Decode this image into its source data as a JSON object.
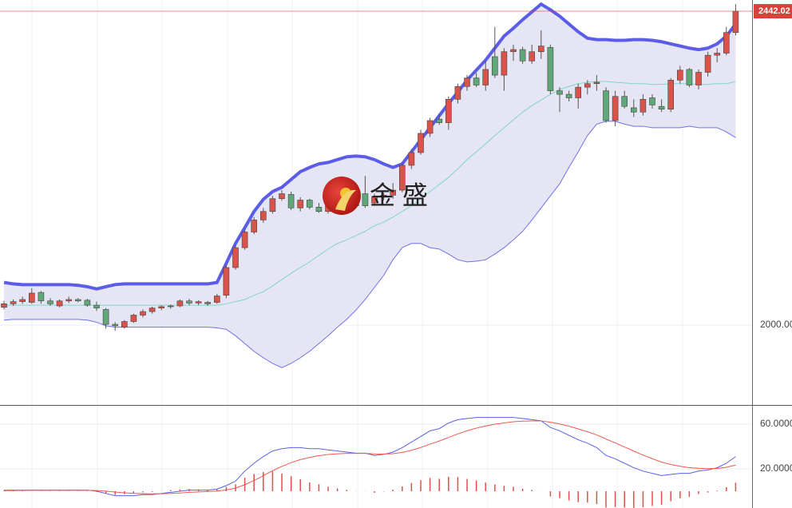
{
  "chart_data": [
    {
      "type": "candlestick",
      "up_color": "#d9534a",
      "down_color": "#5fa877",
      "ylim": [
        1887.5,
        2457.8
      ],
      "yticks": [
        {
          "value": 2000,
          "label": "2000.00"
        }
      ],
      "grid": true,
      "last_price": 2442.02,
      "last_price_color": "#d9423a",
      "watermark": "金 盛",
      "band_fill": "#e5e5f3",
      "ohlc": [
        [
          2025,
          2034,
          2022,
          2030
        ],
        [
          2030,
          2036,
          2027,
          2033
        ],
        [
          2033,
          2040,
          2030,
          2036
        ],
        [
          2032,
          2052,
          2030,
          2045
        ],
        [
          2046,
          2048,
          2030,
          2034
        ],
        [
          2034,
          2038,
          2027,
          2030
        ],
        [
          2027,
          2036,
          2025,
          2034
        ],
        [
          2034,
          2040,
          2031,
          2036
        ],
        [
          2036,
          2038,
          2032,
          2034
        ],
        [
          2035,
          2037,
          2026,
          2028
        ],
        [
          2028,
          2033,
          2020,
          2024
        ],
        [
          2022,
          2024,
          1995,
          2001
        ],
        [
          2001,
          2004,
          1992,
          1999
        ],
        [
          1997,
          2007,
          1995,
          2005
        ],
        [
          2005,
          2016,
          2003,
          2014
        ],
        [
          2014,
          2022,
          2011,
          2019
        ],
        [
          2019,
          2026,
          2016,
          2024
        ],
        [
          2024,
          2028,
          2021,
          2026
        ],
        [
          2026,
          2029,
          2023,
          2027
        ],
        [
          2027,
          2036,
          2025,
          2034
        ],
        [
          2034,
          2037,
          2028,
          2031
        ],
        [
          2031,
          2035,
          2028,
          2033
        ],
        [
          2030,
          2034,
          2027,
          2032
        ],
        [
          2032,
          2044,
          2030,
          2041
        ],
        [
          2042,
          2085,
          2038,
          2081
        ],
        [
          2081,
          2113,
          2078,
          2109
        ],
        [
          2109,
          2135,
          2106,
          2131
        ],
        [
          2131,
          2152,
          2128,
          2148
        ],
        [
          2148,
          2165,
          2144,
          2160
        ],
        [
          2160,
          2182,
          2157,
          2178
        ],
        [
          2178,
          2190,
          2175,
          2185
        ],
        [
          2184,
          2188,
          2162,
          2165
        ],
        [
          2165,
          2180,
          2160,
          2176
        ],
        [
          2176,
          2178,
          2163,
          2166
        ],
        [
          2166,
          2172,
          2158,
          2160
        ],
        [
          2160,
          2175,
          2157,
          2171
        ],
        [
          2170,
          2176,
          2163,
          2168
        ],
        [
          2168,
          2194,
          2165,
          2180
        ],
        [
          2181,
          2183,
          2165,
          2168
        ],
        [
          2185,
          2210,
          2165,
          2168
        ],
        [
          2172,
          2185,
          2168,
          2181
        ],
        [
          2181,
          2186,
          2176,
          2183
        ],
        [
          2183,
          2200,
          2178,
          2190
        ],
        [
          2190,
          2230,
          2187,
          2225
        ],
        [
          2225,
          2248,
          2220,
          2243
        ],
        [
          2243,
          2275,
          2240,
          2270
        ],
        [
          2270,
          2292,
          2265,
          2288
        ],
        [
          2290,
          2298,
          2282,
          2285
        ],
        [
          2285,
          2322,
          2275,
          2318
        ],
        [
          2318,
          2340,
          2312,
          2336
        ],
        [
          2336,
          2352,
          2330,
          2348
        ],
        [
          2348,
          2355,
          2335,
          2338
        ],
        [
          2338,
          2372,
          2330,
          2360
        ],
        [
          2378,
          2420,
          2348,
          2352
        ],
        [
          2352,
          2390,
          2330,
          2385
        ],
        [
          2385,
          2395,
          2372,
          2388
        ],
        [
          2388,
          2392,
          2368,
          2372
        ],
        [
          2372,
          2395,
          2368,
          2385
        ],
        [
          2385,
          2415,
          2375,
          2393
        ],
        [
          2391,
          2395,
          2325,
          2330
        ],
        [
          2330,
          2335,
          2300,
          2325
        ],
        [
          2325,
          2330,
          2315,
          2320
        ],
        [
          2320,
          2340,
          2305,
          2335
        ],
        [
          2335,
          2345,
          2325,
          2340
        ],
        [
          2340,
          2352,
          2330,
          2342
        ],
        [
          2330,
          2335,
          2285,
          2288
        ],
        [
          2288,
          2330,
          2280,
          2322
        ],
        [
          2322,
          2330,
          2305,
          2308
        ],
        [
          2306,
          2318,
          2293,
          2300
        ],
        [
          2300,
          2325,
          2295,
          2318
        ],
        [
          2320,
          2325,
          2305,
          2310
        ],
        [
          2308,
          2318,
          2300,
          2304
        ],
        [
          2304,
          2348,
          2300,
          2345
        ],
        [
          2345,
          2365,
          2340,
          2359
        ],
        [
          2360,
          2362,
          2335,
          2338
        ],
        [
          2338,
          2360,
          2332,
          2356
        ],
        [
          2356,
          2385,
          2350,
          2380
        ],
        [
          2380,
          2390,
          2370,
          2383
        ],
        [
          2383,
          2420,
          2380,
          2412
        ],
        [
          2412,
          2452,
          2408,
          2442
        ]
      ],
      "series": [
        {
          "color": "#5b5ce8",
          "width": 4,
          "values": [
            2060,
            2058,
            2057,
            2057,
            2057,
            2057,
            2057,
            2057,
            2056,
            2054,
            2051,
            2054,
            2057,
            2058,
            2058,
            2058,
            2058,
            2058,
            2058,
            2058,
            2058,
            2058,
            2058,
            2060,
            2087,
            2115,
            2137,
            2160,
            2177,
            2188,
            2194,
            2205,
            2216,
            2222,
            2227,
            2229,
            2233,
            2237,
            2238,
            2237,
            2233,
            2227,
            2222,
            2227,
            2244,
            2261,
            2278,
            2295,
            2312,
            2328,
            2345,
            2359,
            2373,
            2390,
            2407,
            2418,
            2430,
            2441,
            2452,
            2444,
            2435,
            2424,
            2413,
            2404,
            2402,
            2402,
            2401,
            2401,
            2402,
            2402,
            2401,
            2399,
            2396,
            2393,
            2390,
            2388,
            2390,
            2396,
            2407,
            2424
          ]
        },
        {
          "color": "#7fd8c4",
          "width": 1,
          "values": [
            2028,
            2028,
            2028,
            2028,
            2028,
            2028,
            2028,
            2028,
            2028,
            2028,
            2028,
            2028,
            2028,
            2028,
            2028,
            2028,
            2028,
            2028,
            2028,
            2028,
            2028,
            2028,
            2028,
            2028,
            2030,
            2033,
            2036,
            2042,
            2047,
            2055,
            2064,
            2073,
            2081,
            2089,
            2098,
            2107,
            2115,
            2120,
            2126,
            2132,
            2140,
            2145,
            2152,
            2160,
            2168,
            2178,
            2188,
            2198,
            2208,
            2220,
            2233,
            2244,
            2255,
            2267,
            2278,
            2289,
            2300,
            2309,
            2317,
            2325,
            2332,
            2336,
            2340,
            2342,
            2343,
            2343,
            2342,
            2341,
            2340,
            2340,
            2339,
            2339,
            2340,
            2340,
            2340,
            2339,
            2339,
            2340,
            2340,
            2343
          ]
        },
        {
          "color": "#6f72e8",
          "width": 1,
          "values": [
            2007,
            2008,
            2008,
            2008,
            2008,
            2008,
            2008,
            2008,
            2008,
            2007,
            2004,
            1999,
            1997,
            1997,
            1997,
            1997,
            1997,
            1997,
            1997,
            1997,
            1997,
            1997,
            1997,
            1996,
            1994,
            1985,
            1974,
            1963,
            1954,
            1946,
            1940,
            1946,
            1954,
            1963,
            1974,
            1985,
            1997,
            2008,
            2021,
            2036,
            2053,
            2070,
            2092,
            2109,
            2115,
            2115,
            2109,
            2107,
            2100,
            2092,
            2089,
            2090,
            2092,
            2100,
            2109,
            2120,
            2132,
            2148,
            2165,
            2182,
            2199,
            2222,
            2244,
            2267,
            2283,
            2287,
            2287,
            2283,
            2280,
            2280,
            2278,
            2278,
            2278,
            2278,
            2280,
            2278,
            2278,
            2278,
            2272,
            2264
          ]
        }
      ]
    },
    {
      "type": "line",
      "ylim": [
        -15,
        75
      ],
      "yticks": [
        {
          "value": 60,
          "label": "60.0000"
        },
        {
          "value": 20,
          "label": "20.0000"
        }
      ],
      "grid": true,
      "series": [
        {
          "kind": "line",
          "color": "#5a62e6",
          "values": [
            1,
            1,
            1,
            1,
            1,
            1,
            1,
            1,
            1,
            1,
            0,
            -2,
            -4,
            -4,
            -4,
            -3,
            -3,
            -2,
            -1,
            0,
            1,
            1,
            1,
            2,
            5,
            9,
            18,
            25,
            31,
            36,
            38,
            39,
            39,
            38,
            38,
            37,
            36,
            35,
            34,
            34,
            32,
            33,
            35,
            39,
            44,
            49,
            54,
            56,
            61,
            64,
            65,
            66,
            66,
            66,
            66,
            66,
            65,
            64,
            63,
            57,
            54,
            50,
            46,
            43,
            39,
            32,
            29,
            25,
            21,
            18,
            16,
            14,
            15,
            16,
            16,
            18,
            19,
            21,
            25,
            31
          ]
        },
        {
          "kind": "line",
          "color": "#ef5a4f",
          "values": [
            0.5,
            0.6,
            0.7,
            0.8,
            0.8,
            0.8,
            0.8,
            0.8,
            0.8,
            0.8,
            0.6,
            0.1,
            -0.7,
            -1.4,
            -1.9,
            -2.1,
            -2.3,
            -2.2,
            -2,
            -1.6,
            -1,
            -0.6,
            -0.3,
            0.2,
            1.2,
            2.8,
            5.8,
            9.6,
            13.9,
            18.3,
            22.2,
            25.6,
            28.3,
            30.2,
            31.8,
            32.9,
            33.5,
            33.8,
            33.8,
            33.8,
            33.4,
            33.3,
            33.6,
            34.7,
            36.6,
            39.1,
            42.1,
            44.9,
            48.1,
            51.3,
            54,
            56.4,
            58.3,
            59.9,
            61.1,
            62.1,
            62.7,
            62.9,
            62.9,
            61.7,
            60.2,
            58.2,
            55.7,
            53.2,
            50.4,
            46.7,
            43.2,
            39.6,
            35.9,
            32.3,
            29.1,
            26.1,
            23.9,
            22.3,
            21.1,
            20.5,
            20.2,
            20.4,
            21.4,
            23.4
          ]
        },
        {
          "kind": "bar",
          "color": "#e0504a",
          "values": [
            0.5,
            0.4,
            0.3,
            0.2,
            0.2,
            0.2,
            0.2,
            0.2,
            0.2,
            0.2,
            -0.6,
            -2.1,
            -3.3,
            -2.6,
            -2.1,
            -0.9,
            -0.7,
            0.2,
            1,
            1.6,
            2,
            1.6,
            1.3,
            1.8,
            3.8,
            6.2,
            12.2,
            15.4,
            17.1,
            17.7,
            15.8,
            13.4,
            10.7,
            7.8,
            6.2,
            4.1,
            2.5,
            1.2,
            0.2,
            0.2,
            -1.4,
            -0.3,
            1.4,
            4.3,
            7.4,
            9.9,
            11.9,
            11.1,
            12.9,
            12.7,
            11,
            9.6,
            7.7,
            6.1,
            4.9,
            3.9,
            2.3,
            1.1,
            0.1,
            -4.7,
            -6.2,
            -8.2,
            -9.7,
            -10.2,
            -11.4,
            -14.7,
            -14.2,
            -14.6,
            -14.9,
            -14.3,
            -13.1,
            -12.1,
            -8.9,
            -6.3,
            -5.1,
            -2.5,
            -1.2,
            0.6,
            3.6,
            7.6
          ]
        }
      ]
    }
  ]
}
